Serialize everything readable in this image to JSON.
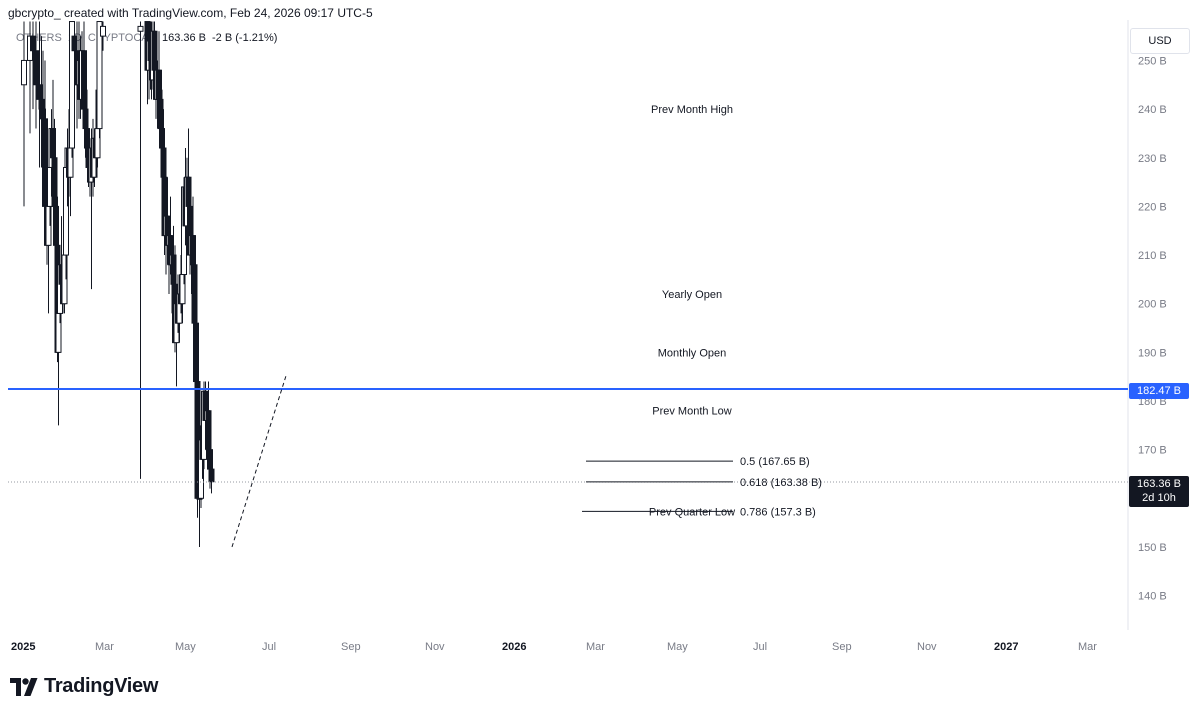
{
  "header": {
    "caption": "gbcrypto_ created with TradingView.com, Feb 24, 2026 09:17 UTC-5"
  },
  "legend": {
    "symbol": "OTHERS",
    "interval": "1D",
    "exchange": "CRYPTOCAP",
    "value": "163.36 B",
    "change": "-2 B (-1.21%)"
  },
  "currency": "USD",
  "price_tags": {
    "blue_line": "182.47 B",
    "current": "163.36 B",
    "countdown": "2d 10h"
  },
  "brand": {
    "name": "TradingView"
  },
  "colors": {
    "candle": "#131722",
    "horizontal_line": "#2962ff",
    "background": "#ffffff"
  },
  "chart_data": {
    "type": "candlestick",
    "y_axis": {
      "ticks": [
        "250 B",
        "240 B",
        "230 B",
        "220 B",
        "210 B",
        "200 B",
        "190 B",
        "180 B",
        "170 B",
        "160 B",
        "150 B",
        "140 B"
      ],
      "range": [
        135,
        258
      ],
      "unit": "B"
    },
    "x_axis": {
      "ticks": [
        "2025",
        "Mar",
        "May",
        "Jul",
        "Sep",
        "Nov",
        "2026",
        "Mar",
        "May",
        "Jul",
        "Sep",
        "Nov",
        "2027",
        "Mar"
      ]
    },
    "horizontal_line": {
      "value": 182.47
    },
    "current_price": 163.36,
    "annotations": [
      {
        "label": "Prev Month High",
        "y": 240
      },
      {
        "label": "Yearly Open",
        "y": 202
      },
      {
        "label": "Monthly Open",
        "y": 190
      },
      {
        "label": "Prev Month Low",
        "y": 178
      },
      {
        "label": "Prev Quarter Low",
        "y": 157.3
      }
    ],
    "fib_levels": [
      {
        "label": "0.5 (167.65 B)",
        "value": 167.65
      },
      {
        "label": "0.618 (163.38 B)",
        "value": 163.38
      },
      {
        "label": "0.786 (157.3 B)",
        "value": 157.3
      }
    ],
    "trend_line": {
      "from": [
        "2026-02-21",
        150
      ],
      "to": [
        "2026-06-10",
        185.5
      ]
    },
    "candles": [
      {
        "t": "2025-01-01",
        "o": 245,
        "h": 258,
        "l": 220,
        "c": 250
      },
      {
        "t": "2025-01-13",
        "o": 250,
        "h": 258,
        "l": 235,
        "c": 255
      },
      {
        "t": "2025-01-19",
        "o": 255,
        "h": 258,
        "l": 240,
        "c": 252
      },
      {
        "t": "2025-01-25",
        "o": 252,
        "h": 258,
        "l": 236,
        "c": 245
      },
      {
        "t": "2025-02-01",
        "o": 245,
        "h": 258,
        "l": 228,
        "c": 242
      },
      {
        "t": "2025-02-05",
        "o": 242,
        "h": 255,
        "l": 228,
        "c": 240
      },
      {
        "t": "2025-02-08",
        "o": 240,
        "h": 252,
        "l": 225,
        "c": 238
      },
      {
        "t": "2025-02-12",
        "o": 238,
        "h": 250,
        "l": 214,
        "c": 220
      },
      {
        "t": "2025-02-16",
        "o": 220,
        "h": 230,
        "l": 208,
        "c": 212
      },
      {
        "t": "2025-02-19",
        "o": 212,
        "h": 225,
        "l": 198,
        "c": 220
      },
      {
        "t": "2025-02-22",
        "o": 220,
        "h": 232,
        "l": 216,
        "c": 228
      },
      {
        "t": "2025-02-25",
        "o": 228,
        "h": 240,
        "l": 222,
        "c": 236
      },
      {
        "t": "2025-02-28",
        "o": 236,
        "h": 246,
        "l": 224,
        "c": 230
      },
      {
        "t": "2025-03-03",
        "o": 230,
        "h": 238,
        "l": 215,
        "c": 220
      },
      {
        "t": "2025-03-06",
        "o": 220,
        "h": 228,
        "l": 205,
        "c": 212
      },
      {
        "t": "2025-03-09",
        "o": 212,
        "h": 222,
        "l": 188,
        "c": 190
      },
      {
        "t": "2025-03-11",
        "o": 190,
        "h": 206,
        "l": 175,
        "c": 198
      },
      {
        "t": "2025-03-14",
        "o": 198,
        "h": 212,
        "l": 196,
        "c": 208
      },
      {
        "t": "2025-03-17",
        "o": 208,
        "h": 218,
        "l": 200,
        "c": 204
      },
      {
        "t": "2025-03-20",
        "o": 204,
        "h": 210,
        "l": 198,
        "c": 200
      },
      {
        "t": "2025-03-23",
        "o": 200,
        "h": 214,
        "l": 198,
        "c": 210
      },
      {
        "t": "2025-03-26",
        "o": 210,
        "h": 232,
        "l": 205,
        "c": 228
      },
      {
        "t": "2025-03-29",
        "o": 228,
        "h": 236,
        "l": 220,
        "c": 232
      },
      {
        "t": "2025-04-01",
        "o": 232,
        "h": 240,
        "l": 222,
        "c": 226
      },
      {
        "t": "2025-04-04",
        "o": 226,
        "h": 236,
        "l": 218,
        "c": 232
      },
      {
        "t": "2025-04-07",
        "o": 232,
        "h": 258,
        "l": 230,
        "c": 258
      },
      {
        "t": "2025-04-12",
        "o": 255,
        "h": 258,
        "l": 240,
        "c": 252
      },
      {
        "t": "2025-04-17",
        "o": 252,
        "h": 258,
        "l": 236,
        "c": 245
      },
      {
        "t": "2025-04-21",
        "o": 245,
        "h": 258,
        "l": 238,
        "c": 250
      },
      {
        "t": "2025-04-24",
        "o": 250,
        "h": 255,
        "l": 238,
        "c": 242
      },
      {
        "t": "2025-04-27",
        "o": 242,
        "h": 256,
        "l": 240,
        "c": 252
      },
      {
        "t": "2025-05-01",
        "o": 252,
        "h": 258,
        "l": 236,
        "c": 240
      },
      {
        "t": "2025-05-04",
        "o": 240,
        "h": 248,
        "l": 230,
        "c": 236
      },
      {
        "t": "2025-05-07",
        "o": 236,
        "h": 244,
        "l": 228,
        "c": 232
      },
      {
        "t": "2025-05-10",
        "o": 232,
        "h": 236,
        "l": 224,
        "c": 228
      },
      {
        "t": "2025-05-13",
        "o": 228,
        "h": 234,
        "l": 222,
        "c": 225
      },
      {
        "t": "2025-05-16",
        "o": 225,
        "h": 236,
        "l": 203,
        "c": 232
      },
      {
        "t": "2025-05-19",
        "o": 232,
        "h": 238,
        "l": 222,
        "c": 226
      },
      {
        "t": "2025-05-22",
        "o": 226,
        "h": 236,
        "l": 224,
        "c": 234
      },
      {
        "t": "2025-05-25",
        "o": 234,
        "h": 244,
        "l": 226,
        "c": 230
      },
      {
        "t": "2025-05-28",
        "o": 230,
        "h": 240,
        "l": 228,
        "c": 236
      },
      {
        "t": "2025-06-01",
        "o": 236,
        "h": 258,
        "l": 234,
        "c": 258
      },
      {
        "t": "2025-06-08",
        "o": 255,
        "h": 258,
        "l": 252,
        "c": 257
      },
      {
        "t": "2025-08-22",
        "o": 256,
        "h": 258,
        "l": 164,
        "c": 257
      },
      {
        "t": "2025-09-05",
        "o": 258,
        "h": 258,
        "l": 241,
        "c": 248
      },
      {
        "t": "2025-09-08",
        "o": 248,
        "h": 258,
        "l": 242,
        "c": 254
      },
      {
        "t": "2025-09-11",
        "o": 254,
        "h": 258,
        "l": 244,
        "c": 250
      },
      {
        "t": "2025-09-13",
        "o": 250,
        "h": 258,
        "l": 242,
        "c": 246
      },
      {
        "t": "2025-09-16",
        "o": 246,
        "h": 258,
        "l": 244,
        "c": 256
      },
      {
        "t": "2025-09-19",
        "o": 256,
        "h": 258,
        "l": 242,
        "c": 248
      },
      {
        "t": "2025-09-22",
        "o": 248,
        "h": 256,
        "l": 238,
        "c": 242
      },
      {
        "t": "2025-09-25",
        "o": 242,
        "h": 250,
        "l": 236,
        "c": 248
      },
      {
        "t": "2025-09-28",
        "o": 248,
        "h": 256,
        "l": 238,
        "c": 242
      },
      {
        "t": "2025-10-01",
        "o": 242,
        "h": 248,
        "l": 232,
        "c": 236
      },
      {
        "t": "2025-10-04",
        "o": 236,
        "h": 244,
        "l": 228,
        "c": 232
      },
      {
        "t": "2025-10-07",
        "o": 232,
        "h": 240,
        "l": 220,
        "c": 226
      },
      {
        "t": "2025-10-09",
        "o": 226,
        "h": 232,
        "l": 210,
        "c": 214
      },
      {
        "t": "2025-10-12",
        "o": 214,
        "h": 224,
        "l": 206,
        "c": 218
      },
      {
        "t": "2025-10-15",
        "o": 218,
        "h": 226,
        "l": 208,
        "c": 212
      },
      {
        "t": "2025-10-18",
        "o": 212,
        "h": 218,
        "l": 202,
        "c": 214
      },
      {
        "t": "2025-10-21",
        "o": 214,
        "h": 222,
        "l": 206,
        "c": 208
      },
      {
        "t": "2025-10-24",
        "o": 208,
        "h": 214,
        "l": 198,
        "c": 210
      },
      {
        "t": "2025-10-27",
        "o": 210,
        "h": 216,
        "l": 202,
        "c": 204
      },
      {
        "t": "2025-10-30",
        "o": 204,
        "h": 212,
        "l": 190,
        "c": 192
      },
      {
        "t": "2025-11-02",
        "o": 192,
        "h": 204,
        "l": 183,
        "c": 200
      },
      {
        "t": "2025-11-05",
        "o": 200,
        "h": 206,
        "l": 194,
        "c": 196
      },
      {
        "t": "2025-11-08",
        "o": 196,
        "h": 206,
        "l": 192,
        "c": 202
      },
      {
        "t": "2025-11-11",
        "o": 202,
        "h": 210,
        "l": 198,
        "c": 200
      },
      {
        "t": "2025-11-14",
        "o": 200,
        "h": 210,
        "l": 196,
        "c": 206
      },
      {
        "t": "2025-11-17",
        "o": 206,
        "h": 226,
        "l": 204,
        "c": 224
      },
      {
        "t": "2025-11-20",
        "o": 224,
        "h": 232,
        "l": 212,
        "c": 216
      },
      {
        "t": "2025-11-23",
        "o": 216,
        "h": 230,
        "l": 214,
        "c": 226
      },
      {
        "t": "2025-11-26",
        "o": 226,
        "h": 236,
        "l": 216,
        "c": 220
      },
      {
        "t": "2025-11-29",
        "o": 220,
        "h": 226,
        "l": 206,
        "c": 210
      },
      {
        "t": "2025-12-02",
        "o": 210,
        "h": 218,
        "l": 202,
        "c": 214
      },
      {
        "t": "2025-12-05",
        "o": 214,
        "h": 222,
        "l": 206,
        "c": 208
      },
      {
        "t": "2025-12-08",
        "o": 208,
        "h": 214,
        "l": 194,
        "c": 196
      },
      {
        "t": "2025-12-11",
        "o": 196,
        "h": 202,
        "l": 180,
        "c": 184
      },
      {
        "t": "2025-12-14",
        "o": 184,
        "h": 186,
        "l": 156,
        "c": 160
      },
      {
        "t": "2025-12-18",
        "o": 160,
        "h": 162,
        "l": 150,
        "c": 160
      },
      {
        "t": "2025-12-21",
        "o": 160,
        "h": 175,
        "l": 158,
        "c": 172
      },
      {
        "t": "2025-12-24",
        "o": 172,
        "h": 178,
        "l": 164,
        "c": 168
      },
      {
        "t": "2025-12-27",
        "o": 168,
        "h": 184,
        "l": 166,
        "c": 182
      },
      {
        "t": "2025-12-30",
        "o": 182,
        "h": 184,
        "l": 170,
        "c": 176
      },
      {
        "t": "2026-01-02",
        "o": 176,
        "h": 182,
        "l": 172,
        "c": 178
      },
      {
        "t": "2026-01-05",
        "o": 178,
        "h": 184,
        "l": 168,
        "c": 170
      },
      {
        "t": "2026-01-08",
        "o": 170,
        "h": 176,
        "l": 162,
        "c": 166
      },
      {
        "t": "2026-01-11",
        "o": 166,
        "h": 168,
        "l": 161,
        "c": 163.4
      }
    ]
  }
}
